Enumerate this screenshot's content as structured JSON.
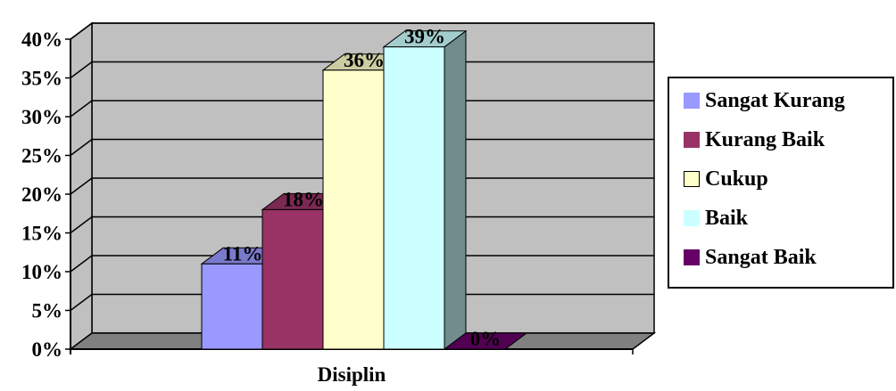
{
  "chart_data": {
    "type": "bar",
    "categories": [
      "Disiplin"
    ],
    "series": [
      {
        "name": "Sangat Kurang",
        "values": [
          11
        ],
        "label": "11%",
        "color": "#9999FF"
      },
      {
        "name": "Kurang Baik",
        "values": [
          18
        ],
        "label": "18%",
        "color": "#993366"
      },
      {
        "name": "Cukup",
        "values": [
          36
        ],
        "label": "36%",
        "color": "#FFFFCC"
      },
      {
        "name": "Baik",
        "values": [
          39
        ],
        "label": "39%",
        "color": "#CCFFFF"
      },
      {
        "name": "Sangat Baik",
        "values": [
          0
        ],
        "label": "0%",
        "color": "#660066"
      }
    ],
    "y_ticks": [
      "0%",
      "5%",
      "10%",
      "15%",
      "20%",
      "25%",
      "30%",
      "35%",
      "40%"
    ],
    "ylim": [
      0,
      40
    ],
    "y_unit": "%",
    "grid": true,
    "three_d": true,
    "legend_position": "right",
    "colors": {
      "wall": "#C0C0C0",
      "floor": "#808080",
      "gridline": "#000000"
    }
  }
}
